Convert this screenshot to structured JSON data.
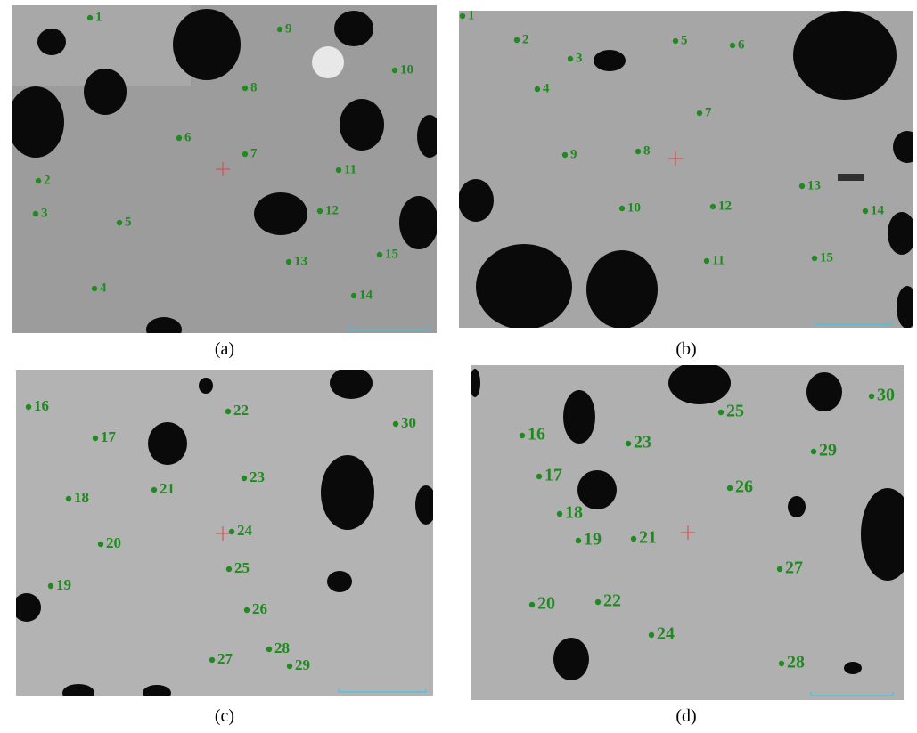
{
  "panels": [
    {
      "caption": "(a)",
      "points": [
        "1",
        "9",
        "10",
        "8",
        "6",
        "7",
        "11",
        "2",
        "3",
        "12",
        "5",
        "13",
        "15",
        "4",
        "14"
      ]
    },
    {
      "caption": "(b)",
      "points": [
        "1",
        "2",
        "5",
        "6",
        "3",
        "4",
        "7",
        "8",
        "9",
        "13",
        "10",
        "12",
        "14",
        "11",
        "15"
      ]
    },
    {
      "caption": "(c)",
      "points": [
        "16",
        "22",
        "30",
        "17",
        "23",
        "18",
        "21",
        "24",
        "20",
        "25",
        "19",
        "26",
        "28",
        "27",
        "29"
      ]
    },
    {
      "caption": "(d)",
      "points": [
        "30",
        "25",
        "16",
        "23",
        "29",
        "17",
        "26",
        "18",
        "19",
        "21",
        "27",
        "20",
        "22",
        "24",
        "28"
      ]
    }
  ]
}
